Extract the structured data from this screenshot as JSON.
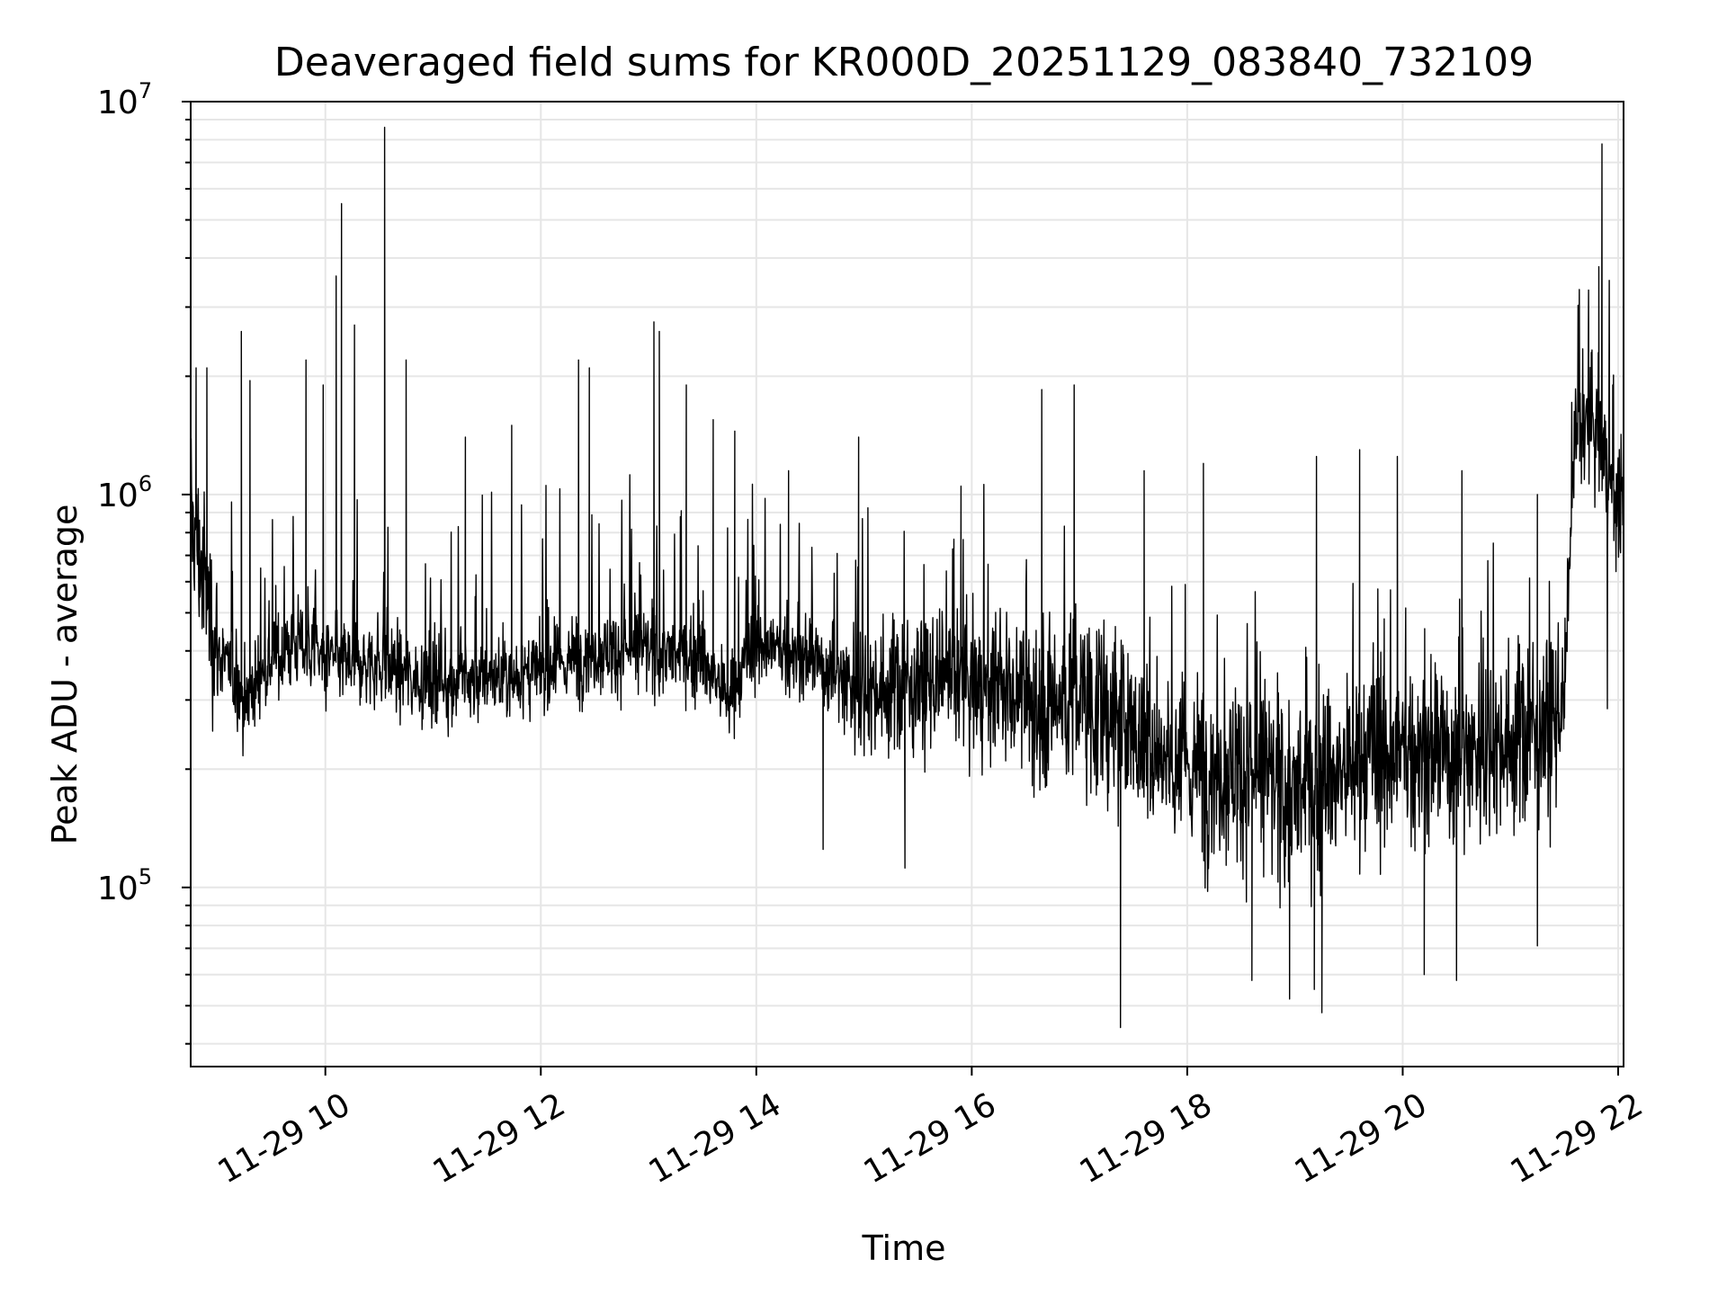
{
  "chart_data": {
    "type": "line",
    "title": "Deaveraged field sums for KR000D_20251129_083840_732109",
    "xlabel": "Time",
    "ylabel": "Peak ADU - average",
    "yscale": "log",
    "ylim": [
      35000,
      10000000
    ],
    "xlim_hours": [
      8.75,
      22.05
    ],
    "grid": true,
    "y_ticks": [
      {
        "base": "10",
        "exp": "5",
        "value": 100000
      },
      {
        "base": "10",
        "exp": "6",
        "value": 1000000
      },
      {
        "base": "10",
        "exp": "7",
        "value": 10000000
      }
    ],
    "x_ticks": [
      {
        "label": "11-29 10",
        "hour": 10
      },
      {
        "label": "11-29 12",
        "hour": 12
      },
      {
        "label": "11-29 14",
        "hour": 14
      },
      {
        "label": "11-29 16",
        "hour": 16
      },
      {
        "label": "11-29 18",
        "hour": 18
      },
      {
        "label": "11-29 20",
        "hour": 20
      },
      {
        "label": "11-29 22",
        "hour": 22
      }
    ],
    "series": [
      {
        "name": "peak_adu_minus_average",
        "color": "#000000",
        "envelope_hours": [
          8.75,
          9.0,
          9.25,
          9.5,
          9.75,
          10.0,
          10.5,
          11.0,
          11.5,
          12.0,
          12.5,
          13.0,
          13.5,
          13.75,
          14.0,
          14.5,
          15.0,
          15.5,
          16.0,
          16.5,
          17.0,
          17.5,
          18.0,
          18.5,
          19.0,
          19.5,
          20.0,
          20.5,
          21.0,
          21.4,
          21.5,
          21.6,
          21.8,
          22.0,
          22.05
        ],
        "envelope_median": [
          900000,
          400000,
          300000,
          380000,
          420000,
          380000,
          370000,
          330000,
          340000,
          350000,
          400000,
          400000,
          380000,
          300000,
          420000,
          380000,
          320000,
          330000,
          330000,
          300000,
          300000,
          250000,
          200000,
          200000,
          170000,
          200000,
          220000,
          220000,
          240000,
          260000,
          300000,
          1400000,
          1500000,
          900000,
          1000000
        ],
        "spikes": [
          {
            "hour": 8.8,
            "value": 2100000
          },
          {
            "hour": 8.9,
            "value": 2100000
          },
          {
            "hour": 9.22,
            "value": 2600000
          },
          {
            "hour": 9.3,
            "value": 1950000
          },
          {
            "hour": 9.82,
            "value": 2200000
          },
          {
            "hour": 9.98,
            "value": 1900000
          },
          {
            "hour": 10.1,
            "value": 3600000
          },
          {
            "hour": 10.15,
            "value": 5500000
          },
          {
            "hour": 10.27,
            "value": 2700000
          },
          {
            "hour": 10.55,
            "value": 8600000
          },
          {
            "hour": 10.75,
            "value": 2200000
          },
          {
            "hour": 11.3,
            "value": 1400000
          },
          {
            "hour": 11.73,
            "value": 1500000
          },
          {
            "hour": 12.35,
            "value": 2200000
          },
          {
            "hour": 12.45,
            "value": 2100000
          },
          {
            "hour": 13.05,
            "value": 2750000
          },
          {
            "hour": 13.1,
            "value": 2600000
          },
          {
            "hour": 13.35,
            "value": 1900000
          },
          {
            "hour": 13.6,
            "value": 1550000
          },
          {
            "hour": 13.8,
            "value": 1450000
          },
          {
            "hour": 14.3,
            "value": 1150000
          },
          {
            "hour": 14.95,
            "value": 1400000
          },
          {
            "hour": 15.9,
            "value": 1050000
          },
          {
            "hour": 16.65,
            "value": 1850000
          },
          {
            "hour": 16.95,
            "value": 1900000
          },
          {
            "hour": 17.6,
            "value": 1150000
          },
          {
            "hour": 18.15,
            "value": 1200000
          },
          {
            "hour": 19.2,
            "value": 1250000
          },
          {
            "hour": 19.6,
            "value": 1300000
          },
          {
            "hour": 19.95,
            "value": 1250000
          },
          {
            "hour": 20.55,
            "value": 1150000
          },
          {
            "hour": 21.25,
            "value": 1000000
          },
          {
            "hour": 21.75,
            "value": 2300000
          },
          {
            "hour": 21.82,
            "value": 3800000
          },
          {
            "hour": 21.85,
            "value": 7800000
          },
          {
            "hour": 21.95,
            "value": 1900000
          }
        ],
        "dips": [
          {
            "hour": 14.62,
            "value": 125000
          },
          {
            "hour": 15.38,
            "value": 112000
          },
          {
            "hour": 17.38,
            "value": 44000
          },
          {
            "hour": 18.6,
            "value": 58000
          },
          {
            "hour": 18.95,
            "value": 52000
          },
          {
            "hour": 19.18,
            "value": 55000
          },
          {
            "hour": 19.25,
            "value": 48000
          },
          {
            "hour": 20.2,
            "value": 60000
          },
          {
            "hour": 20.5,
            "value": 58000
          },
          {
            "hour": 21.25,
            "value": 71000
          },
          {
            "hour": 21.9,
            "value": 285000
          }
        ]
      }
    ]
  }
}
